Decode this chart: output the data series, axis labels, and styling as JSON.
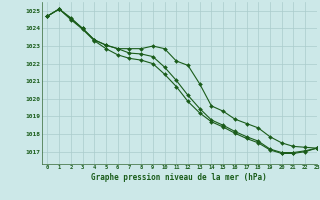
{
  "title": "Graphe pression niveau de la mer (hPa)",
  "bg_color": "#cce8e8",
  "grid_color": "#aacccc",
  "line_color": "#1a5c1a",
  "xlim": [
    -0.5,
    23
  ],
  "ylim": [
    1016.3,
    1025.5
  ],
  "yticks": [
    1017,
    1018,
    1019,
    1020,
    1021,
    1022,
    1023,
    1024,
    1025
  ],
  "xticks": [
    0,
    1,
    2,
    3,
    4,
    5,
    6,
    7,
    8,
    9,
    10,
    11,
    12,
    13,
    14,
    15,
    16,
    17,
    18,
    19,
    20,
    21,
    22,
    23
  ],
  "hours": [
    0,
    1,
    2,
    3,
    4,
    5,
    6,
    7,
    8,
    9,
    10,
    11,
    12,
    13,
    14,
    15,
    16,
    17,
    18,
    19,
    20,
    21,
    22,
    23
  ],
  "line_upper": [
    1024.7,
    1025.1,
    1024.6,
    1024.0,
    1023.35,
    1023.05,
    1022.85,
    1022.85,
    1022.85,
    1023.0,
    1022.85,
    1022.15,
    1021.9,
    1020.85,
    1019.6,
    1019.3,
    1018.85,
    1018.6,
    1018.35,
    1017.85,
    1017.5,
    1017.3,
    1017.25,
    1017.2
  ],
  "line_middle": [
    1024.7,
    1025.1,
    1024.55,
    1024.0,
    1023.35,
    1023.05,
    1022.85,
    1022.6,
    1022.55,
    1022.4,
    1021.8,
    1021.05,
    1020.2,
    1019.45,
    1018.8,
    1018.5,
    1018.15,
    1017.85,
    1017.6,
    1017.15,
    1016.95,
    1016.95,
    1017.05,
    1017.2
  ],
  "line_lower": [
    1024.7,
    1025.1,
    1024.5,
    1023.95,
    1023.3,
    1022.85,
    1022.5,
    1022.3,
    1022.2,
    1022.0,
    1021.4,
    1020.7,
    1019.85,
    1019.2,
    1018.7,
    1018.4,
    1018.05,
    1017.75,
    1017.5,
    1017.1,
    1016.9,
    1016.9,
    1017.0,
    1017.2
  ]
}
